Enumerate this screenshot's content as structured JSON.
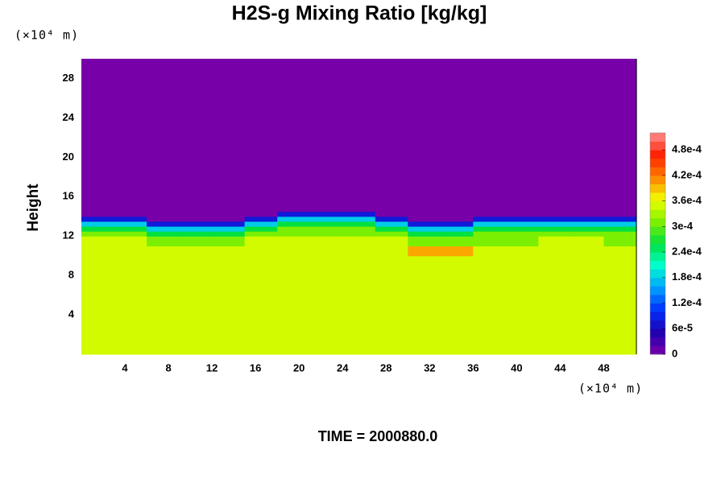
{
  "chart_data": {
    "type": "heatmap",
    "title": "H2S-g Mixing Ratio [kg/kg]",
    "ylabel": "Height",
    "x_unit": "(×10⁴ m)",
    "y_unit": "(×10⁴ m)",
    "footer": "TIME = 2000880.0",
    "xlim": [
      0,
      51
    ],
    "ylim": [
      0,
      30
    ],
    "xticks": [
      4,
      8,
      12,
      16,
      20,
      24,
      28,
      32,
      36,
      40,
      44,
      48
    ],
    "yticks": [
      4,
      8,
      12,
      16,
      20,
      24,
      28
    ],
    "xedges": [
      0,
      3,
      6,
      9,
      12,
      15,
      18,
      21,
      24,
      27,
      30,
      33,
      36,
      39,
      42,
      45,
      48,
      51
    ],
    "yedges": [
      0,
      10,
      11,
      12,
      12.5,
      13,
      13.5,
      14,
      14.5,
      15,
      30
    ],
    "z": [
      [
        0.00035,
        0.00035,
        0.00035,
        0.00035,
        0.00035,
        0.00035,
        0.00035,
        0.00035,
        0.00035,
        0.00035,
        0.00035,
        0.00035,
        0.00035,
        0.00035,
        0.00035,
        0.00035,
        0.00035
      ],
      [
        0.00035,
        0.00035,
        0.00035,
        0.00035,
        0.00035,
        0.00035,
        0.00035,
        0.00035,
        0.00035,
        0.00035,
        0.0004,
        0.0004,
        0.00035,
        0.00035,
        0.00035,
        0.00035,
        0.00035
      ],
      [
        0.00035,
        0.00035,
        0.00031,
        0.00031,
        0.00031,
        0.00035,
        0.00035,
        0.00035,
        0.00035,
        0.00035,
        0.00031,
        0.00031,
        0.00031,
        0.00031,
        0.00035,
        0.00035,
        0.00031
      ],
      [
        0.00031,
        0.00031,
        0.00026,
        0.00026,
        0.00026,
        0.00031,
        0.00031,
        0.00031,
        0.00031,
        0.00031,
        0.00026,
        0.00026,
        0.00031,
        0.00031,
        0.00031,
        0.00031,
        0.00031
      ],
      [
        0.00026,
        0.00026,
        0.00018,
        0.00018,
        0.00018,
        0.00026,
        0.00031,
        0.00031,
        0.00031,
        0.00026,
        0.00018,
        0.00018,
        0.00026,
        0.00026,
        0.00026,
        0.00026,
        0.00026
      ],
      [
        0.00018,
        0.00018,
        8e-05,
        8e-05,
        8e-05,
        0.00018,
        0.00026,
        0.00026,
        0.00026,
        0.00018,
        8e-05,
        8e-05,
        0.00018,
        0.00018,
        0.00018,
        0.00018,
        0.00018
      ],
      [
        8e-05,
        8e-05,
        0,
        0,
        0,
        8e-05,
        0.00018,
        0.00018,
        0.00018,
        8e-05,
        0,
        0,
        8e-05,
        8e-05,
        8e-05,
        8e-05,
        8e-05
      ],
      [
        0,
        0,
        0,
        0,
        0,
        0,
        8e-05,
        8e-05,
        8e-05,
        0,
        0,
        0,
        0,
        0,
        0,
        0,
        0
      ],
      [
        0,
        0,
        0,
        0,
        0,
        0,
        0,
        0,
        0,
        0,
        0,
        0,
        0,
        0,
        0,
        0,
        0
      ],
      [
        0,
        0,
        0,
        0,
        0,
        0,
        0,
        0,
        0,
        0,
        0,
        0,
        0,
        0,
        0,
        0,
        0
      ]
    ],
    "zlim": [
      0,
      0.00052
    ],
    "zticks": [
      0,
      {
        "value": 6e-05,
        "label": "6e-5"
      },
      {
        "value": 0.00012,
        "label": "1.2e-4"
      },
      {
        "value": 0.00018,
        "label": "1.8e-4"
      },
      {
        "value": 0.00024,
        "label": "2.4e-4"
      },
      {
        "value": 0.0003,
        "label": "3e-4"
      },
      {
        "value": 0.00036,
        "label": "3.6e-4"
      },
      {
        "value": 0.00042,
        "label": "4.2e-4"
      },
      {
        "value": 0.00048,
        "label": "4.8e-4"
      }
    ],
    "colormap": [
      "#7800a8",
      "#2000b0",
      "#0030ff",
      "#00a0ff",
      "#00ffd0",
      "#00e040",
      "#80f000",
      "#f0ff00",
      "#ff8000",
      "#ff2000",
      "#ff9090"
    ]
  }
}
